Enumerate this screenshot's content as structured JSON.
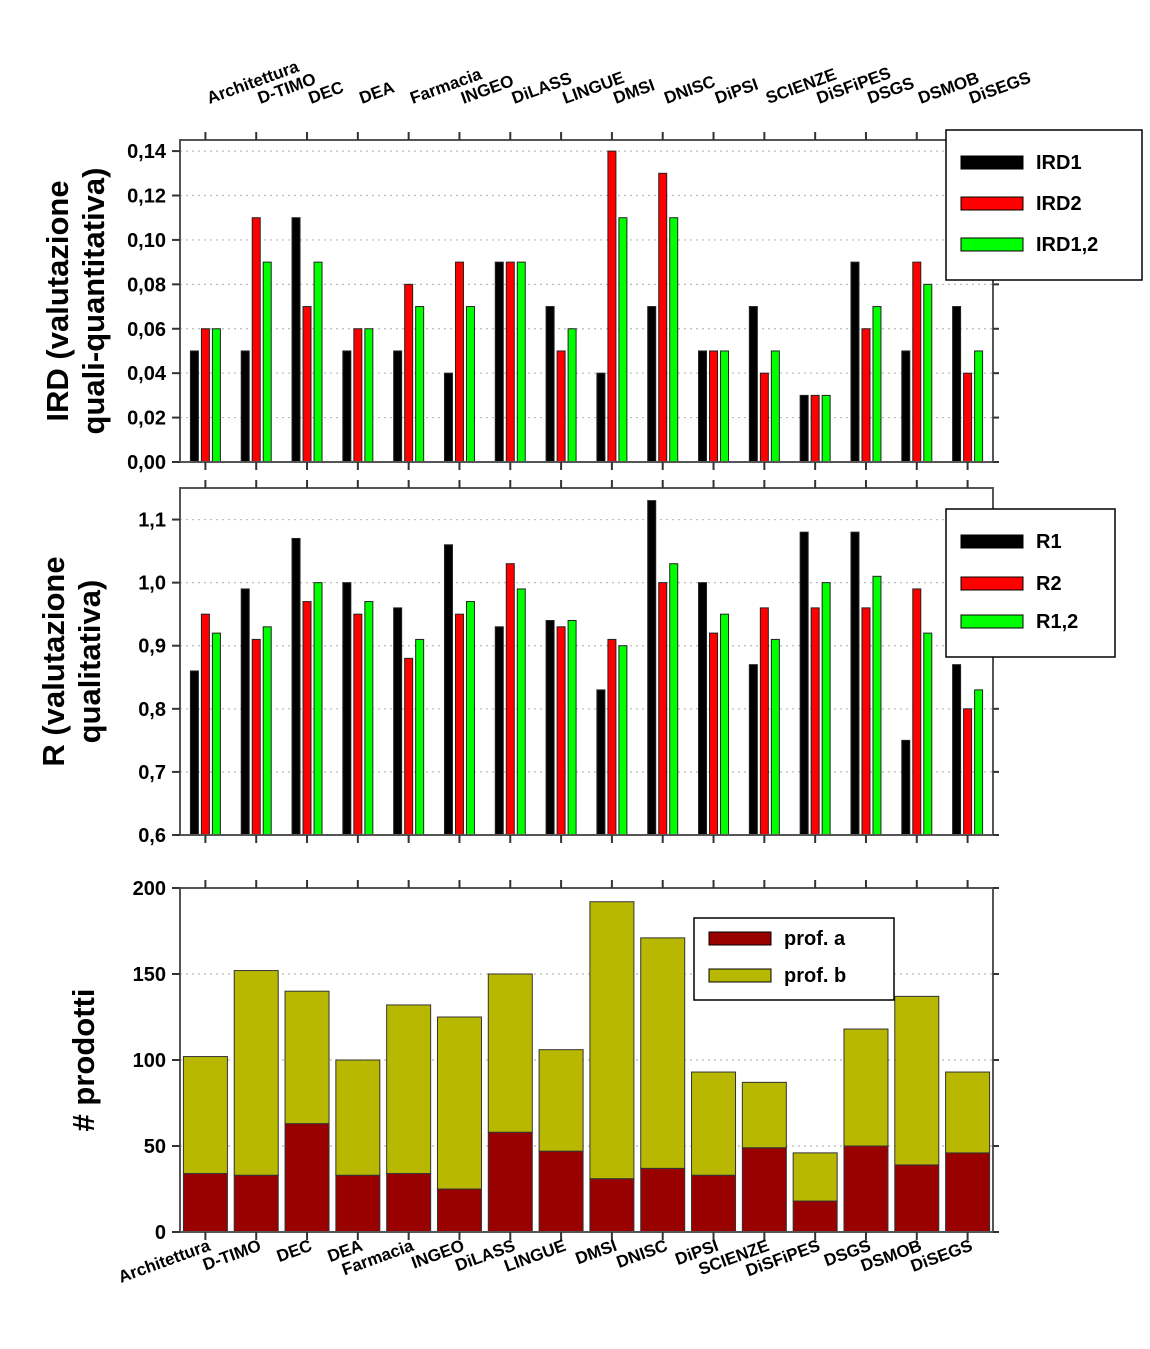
{
  "chart_data": [
    {
      "type": "bar",
      "ylabel_lines": [
        "IRD (valutazione",
        "quali-quantitativa)"
      ],
      "ylim": [
        0,
        0.145
      ],
      "yticks": [
        "0,00",
        "0,02",
        "0,04",
        "0,06",
        "0,08",
        "0,10",
        "0,12",
        "0,14"
      ],
      "categories": [
        "Architettura",
        "D-TIMO",
        "DEC",
        "DEA",
        "Farmacia",
        "INGEO",
        "DiLASS",
        "LINGUE",
        "DMSI",
        "DNISC",
        "DiPSI",
        "SCIENZE",
        "DiSFiPES",
        "DSGS",
        "DSMOB",
        "DiSEGS"
      ],
      "series": [
        {
          "name": "IRD1",
          "color": "#000000",
          "values": [
            0.05,
            0.05,
            0.11,
            0.05,
            0.05,
            0.04,
            0.09,
            0.07,
            0.04,
            0.07,
            0.05,
            0.07,
            0.03,
            0.09,
            0.05,
            0.07
          ]
        },
        {
          "name": "IRD2",
          "color": "#ff0000",
          "values": [
            0.06,
            0.11,
            0.07,
            0.06,
            0.08,
            0.09,
            0.09,
            0.05,
            0.14,
            0.13,
            0.05,
            0.04,
            0.03,
            0.06,
            0.09,
            0.04
          ]
        },
        {
          "name": "IRD1,2",
          "color": "#00ff00",
          "values": [
            0.06,
            0.09,
            0.09,
            0.06,
            0.07,
            0.07,
            0.09,
            0.06,
            0.11,
            0.11,
            0.05,
            0.05,
            0.03,
            0.07,
            0.08,
            0.05
          ]
        }
      ],
      "grid": true,
      "legend": "top-right"
    },
    {
      "type": "bar",
      "ylabel_lines": [
        "R (valutazione",
        "qualitativa)"
      ],
      "ylim": [
        0.6,
        1.15
      ],
      "yticks": [
        "0,6",
        "0,7",
        "0,8",
        "0,9",
        "1,0",
        "1,1"
      ],
      "categories": [
        "Architettura",
        "D-TIMO",
        "DEC",
        "DEA",
        "Farmacia",
        "INGEO",
        "DiLASS",
        "LINGUE",
        "DMSI",
        "DNISC",
        "DiPSI",
        "SCIENZE",
        "DiSFiPES",
        "DSGS",
        "DSMOB",
        "DiSEGS"
      ],
      "series": [
        {
          "name": "R1",
          "color": "#000000",
          "values": [
            0.86,
            0.99,
            1.07,
            1.0,
            0.96,
            1.06,
            0.93,
            0.94,
            0.83,
            1.13,
            1.0,
            0.87,
            1.08,
            1.08,
            0.75,
            0.87
          ]
        },
        {
          "name": "R2",
          "color": "#ff0000",
          "values": [
            0.95,
            0.91,
            0.97,
            0.95,
            0.88,
            0.95,
            1.03,
            0.93,
            0.91,
            1.0,
            0.92,
            0.96,
            0.96,
            0.96,
            0.99,
            0.8
          ]
        },
        {
          "name": "R1,2",
          "color": "#00ff00",
          "values": [
            0.92,
            0.93,
            1.0,
            0.97,
            0.91,
            0.97,
            0.99,
            0.94,
            0.9,
            1.03,
            0.95,
            0.91,
            1.0,
            1.01,
            0.92,
            0.83
          ]
        }
      ],
      "grid": true,
      "legend": "top-right"
    },
    {
      "type": "bar",
      "stacked": true,
      "ylabel_lines": [
        "# prodotti"
      ],
      "ylim": [
        0,
        200
      ],
      "yticks": [
        "0",
        "50",
        "100",
        "150",
        "200"
      ],
      "categories": [
        "Architettura",
        "D-TIMO",
        "DEC",
        "DEA",
        "Farmacia",
        "INGEO",
        "DiLASS",
        "LINGUE",
        "DMSI",
        "DNISC",
        "DiPSI",
        "SCIENZE",
        "DiSFiPES",
        "DSGS",
        "DSMOB",
        "DiSEGS"
      ],
      "series": [
        {
          "name": "prof. a",
          "color": "#990000",
          "values": [
            34,
            33,
            63,
            33,
            34,
            25,
            58,
            47,
            31,
            37,
            33,
            49,
            18,
            50,
            39,
            46
          ]
        },
        {
          "name": "prof. b",
          "color": "#b8b800",
          "values": [
            68,
            119,
            77,
            67,
            98,
            100,
            92,
            59,
            161,
            134,
            60,
            38,
            28,
            68,
            98,
            47
          ]
        }
      ],
      "grid": true,
      "legend": "top-right"
    }
  ]
}
